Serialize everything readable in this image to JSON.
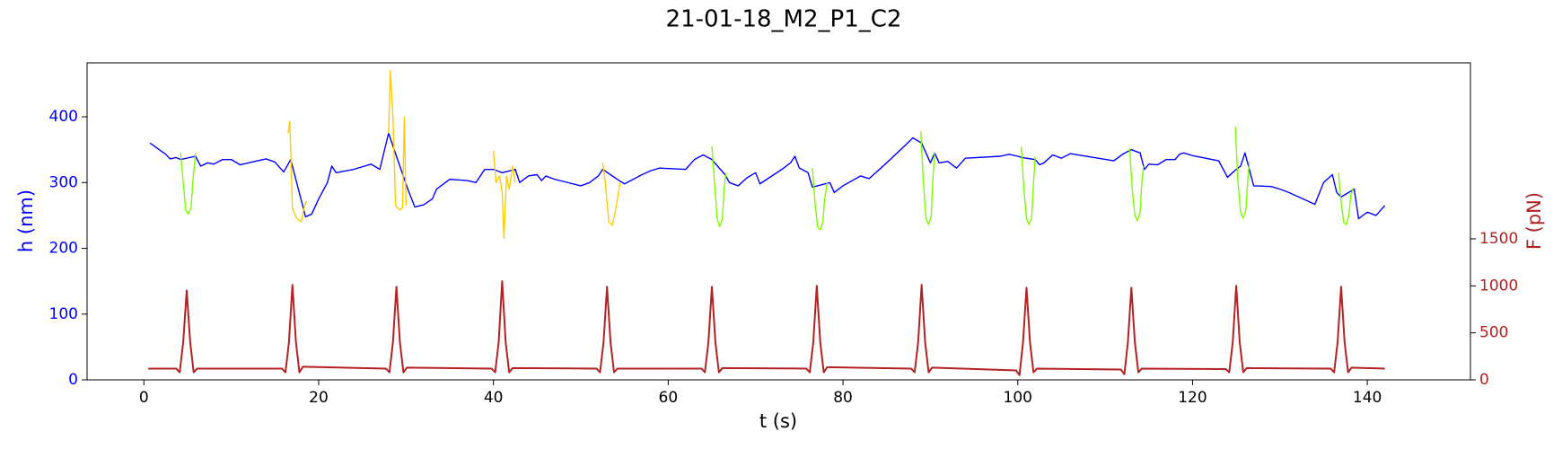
{
  "chart_data": {
    "type": "line",
    "title": "21-01-18_M2_P1_C2",
    "xlabel": "t (s)",
    "ylabel": "h (nm)",
    "y2label": "F (pN)",
    "ycolor": "#0000ff",
    "y2color": "#b22222",
    "xlim": [
      -6.5,
      151.8
    ],
    "xticks": [
      0,
      20,
      40,
      60,
      80,
      100,
      120,
      140
    ],
    "ylim": [
      0,
      482
    ],
    "yticks": [
      0,
      100,
      200,
      300,
      400
    ],
    "y2lim": [
      0,
      3372
    ],
    "y2ticks": [
      0,
      500,
      1000,
      1500
    ],
    "series": [
      {
        "color": "#0000ff",
        "x": [
          0.7,
          2.5,
          3,
          3.7,
          4.2,
          5.9,
          6.5,
          7.3,
          8,
          9,
          10,
          11,
          13,
          14,
          15,
          16,
          16.8,
          18.5,
          19.2,
          20,
          21,
          21.5,
          22,
          24,
          26,
          27,
          28,
          30.2,
          31,
          32,
          33,
          33.5,
          35,
          37,
          38,
          39,
          40,
          41,
          42.5,
          43,
          44,
          45,
          45.5,
          46,
          47,
          50,
          51,
          52,
          52.5,
          54.5,
          55,
          56,
          57,
          58,
          59,
          62,
          63,
          64,
          65,
          66.5,
          67,
          68,
          69,
          70,
          70.5,
          73,
          74,
          74.5,
          75,
          76,
          76.5,
          78.5,
          79,
          80,
          82,
          83,
          85,
          87,
          88,
          89,
          90,
          90.5,
          91,
          92,
          93,
          94,
          98,
          99,
          100,
          100.5,
          102,
          102.5,
          103,
          104,
          105,
          106,
          111,
          112,
          113,
          114,
          114.5,
          115,
          116,
          117,
          118,
          118.5,
          119,
          120,
          123,
          124,
          125,
          125.5,
          126,
          127,
          129,
          130,
          131,
          134,
          135,
          136,
          136.5,
          137,
          138.5,
          139,
          140,
          141,
          142
        ],
        "values": [
          360,
          343,
          336,
          338,
          335,
          340,
          325,
          330,
          328,
          335,
          335,
          327,
          333,
          336,
          331,
          316,
          335,
          248,
          252,
          275,
          300,
          325,
          315,
          320,
          328,
          320,
          375,
          290,
          263,
          266,
          275,
          290,
          305,
          303,
          300,
          320,
          320,
          315,
          320,
          300,
          310,
          312,
          303,
          310,
          305,
          295,
          300,
          310,
          320,
          302,
          298,
          305,
          312,
          318,
          322,
          320,
          335,
          342,
          335,
          312,
          300,
          295,
          307,
          315,
          298,
          320,
          330,
          340,
          322,
          315,
          293,
          300,
          285,
          295,
          310,
          306,
          330,
          355,
          368,
          360,
          330,
          345,
          330,
          332,
          322,
          337,
          340,
          343,
          340,
          338,
          335,
          327,
          330,
          342,
          337,
          344,
          333,
          343,
          350,
          345,
          320,
          328,
          327,
          335,
          335,
          343,
          345,
          341,
          333,
          308,
          320,
          325,
          345,
          295,
          294,
          290,
          285,
          267,
          300,
          312,
          285,
          278,
          290,
          245,
          255,
          250,
          265
        ]
      },
      {
        "color": "#7cfc00",
        "x": [
          4.2,
          4.5,
          4.8,
          5.1,
          5.4,
          5.6,
          5.9,
          null,
          65,
          65.3,
          65.6,
          65.9,
          66.2,
          66.4,
          66.6,
          null,
          76.5,
          76.8,
          77.1,
          77.4,
          77.7,
          77.9,
          78.2,
          null,
          88.9,
          89.2,
          89.5,
          89.8,
          90.1,
          90.3,
          90.5,
          null,
          100.4,
          100.7,
          101,
          101.3,
          101.6,
          101.8,
          102,
          null,
          112.8,
          113.1,
          113.4,
          113.7,
          114,
          114.2,
          114.4,
          null,
          124.9,
          125.2,
          125.5,
          125.8,
          126.1,
          126.3,
          126.5,
          null,
          136.7,
          137,
          137.3,
          137.6,
          137.9,
          138.1,
          138.4
        ],
        "values": [
          345,
          300,
          258,
          252,
          262,
          300,
          345,
          null,
          355,
          300,
          245,
          233,
          245,
          290,
          315,
          null,
          322,
          270,
          232,
          228,
          240,
          275,
          300,
          null,
          378,
          300,
          245,
          236,
          250,
          310,
          345,
          null,
          355,
          290,
          245,
          236,
          248,
          300,
          340,
          null,
          352,
          290,
          250,
          242,
          255,
          300,
          325,
          null,
          385,
          300,
          255,
          246,
          258,
          300,
          332,
          null,
          315,
          270,
          240,
          236,
          250,
          280,
          292
        ]
      },
      {
        "color": "#ffcc00",
        "x": [
          16.5,
          16.7,
          17,
          17.5,
          18,
          18.3,
          18.6,
          null,
          28,
          28.2,
          28.5,
          28.8,
          29.3,
          29.6,
          29.8,
          30,
          null,
          40,
          40.3,
          40.7,
          41,
          41.2,
          41.5,
          41.8,
          42.2,
          42.5,
          null,
          52.5,
          52.8,
          53.2,
          53.6,
          54,
          54.5
        ],
        "values": [
          375,
          393,
          260,
          245,
          240,
          260,
          272,
          null,
          375,
          470,
          400,
          265,
          258,
          262,
          400,
          265,
          null,
          348,
          300,
          310,
          285,
          215,
          310,
          290,
          325,
          300,
          null,
          330,
          300,
          240,
          235,
          260,
          300
        ]
      },
      {
        "color": "#b22222",
        "axis": "y2",
        "x": [
          0.5,
          3.7,
          4.1,
          4.5,
          4.9,
          5.3,
          5.7,
          6.1,
          15.8,
          16.2,
          16.6,
          17,
          17.4,
          17.8,
          18.2,
          27.7,
          28.1,
          28.5,
          28.9,
          29.3,
          29.7,
          30.1,
          39.8,
          40.2,
          40.6,
          41,
          41.4,
          41.8,
          42.2,
          51.8,
          52.2,
          52.6,
          53,
          53.4,
          53.8,
          54.2,
          63.8,
          64.2,
          64.6,
          65,
          65.4,
          65.8,
          66.2,
          75.8,
          76.2,
          76.6,
          77,
          77.4,
          77.8,
          78.2,
          87.8,
          88.2,
          88.6,
          89,
          89.4,
          89.8,
          90.2,
          99.8,
          100.2,
          100.6,
          101,
          101.4,
          101.8,
          102.2,
          111.8,
          112.2,
          112.6,
          113,
          113.4,
          113.8,
          114.2,
          123.8,
          124.2,
          124.6,
          125,
          125.4,
          125.8,
          126.2,
          135.8,
          136.2,
          136.6,
          137,
          137.4,
          137.8,
          138.2,
          142
        ],
        "values": [
          120,
          120,
          80,
          400,
          950,
          400,
          80,
          120,
          120,
          80,
          400,
          1010,
          400,
          80,
          140,
          120,
          80,
          400,
          990,
          400,
          80,
          130,
          120,
          80,
          400,
          1050,
          400,
          80,
          125,
          120,
          80,
          400,
          990,
          400,
          80,
          120,
          120,
          80,
          400,
          990,
          400,
          80,
          125,
          120,
          80,
          400,
          1000,
          400,
          80,
          135,
          120,
          80,
          400,
          1010,
          400,
          80,
          130,
          100,
          50,
          400,
          980,
          400,
          80,
          120,
          110,
          60,
          400,
          980,
          400,
          80,
          120,
          115,
          80,
          400,
          1000,
          400,
          80,
          125,
          120,
          80,
          400,
          990,
          400,
          80,
          130,
          120
        ]
      }
    ]
  }
}
